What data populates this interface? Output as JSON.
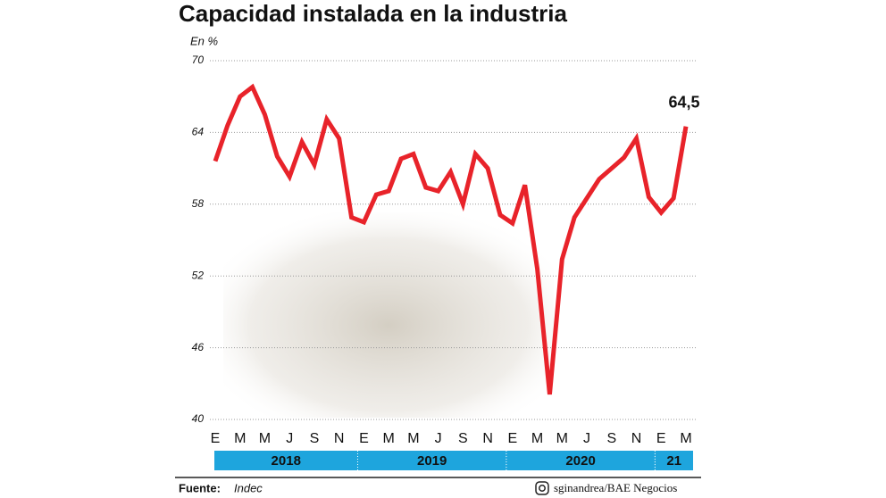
{
  "chart_data": {
    "type": "line",
    "title": "Capacidad instalada en la industria",
    "y_axis_label": "En %",
    "categories": [
      "E",
      null,
      "M",
      null,
      "M",
      null,
      "J",
      null,
      "S",
      null,
      "N",
      null,
      "E",
      null,
      "M",
      null,
      "M",
      null,
      "J",
      null,
      "S",
      null,
      "N",
      null,
      "E",
      null,
      "M",
      null,
      "M",
      null,
      "J",
      null,
      "S",
      null,
      "N",
      null,
      "E",
      null,
      "M"
    ],
    "year_groups": [
      "2018",
      "2019",
      "2020",
      "21"
    ],
    "series": [
      {
        "name": "Capacidad instalada",
        "color": "#e8232a",
        "values": [
          61.6,
          64.6,
          67.0,
          67.8,
          65.5,
          62.0,
          60.3,
          63.2,
          61.3,
          65.1,
          63.5,
          56.9,
          56.5,
          58.8,
          59.1,
          61.8,
          62.2,
          59.4,
          59.1,
          60.7,
          58.0,
          62.2,
          61.0,
          57.1,
          56.4,
          59.6,
          52.6,
          42.1,
          53.4,
          56.9,
          58.5,
          60.1,
          61.0,
          61.9,
          63.5,
          58.6,
          57.3,
          58.5,
          64.5
        ],
        "value_labels": [
          null,
          null,
          null,
          null,
          null,
          null,
          null,
          null,
          null,
          null,
          null,
          null,
          null,
          null,
          null,
          null,
          null,
          null,
          null,
          null,
          null,
          null,
          null,
          null,
          null,
          null,
          null,
          null,
          null,
          null,
          null,
          null,
          null,
          null,
          null,
          null,
          null,
          null,
          "64,5"
        ]
      }
    ],
    "ylim": [
      40,
      70
    ],
    "yticks": [
      40,
      46,
      52,
      58,
      64,
      70
    ],
    "grid": true,
    "year_band_color": "#1ea5dd",
    "source_label": "Fuente:",
    "source": "Indec",
    "credit": "sginandrea/BAE Negocios"
  }
}
